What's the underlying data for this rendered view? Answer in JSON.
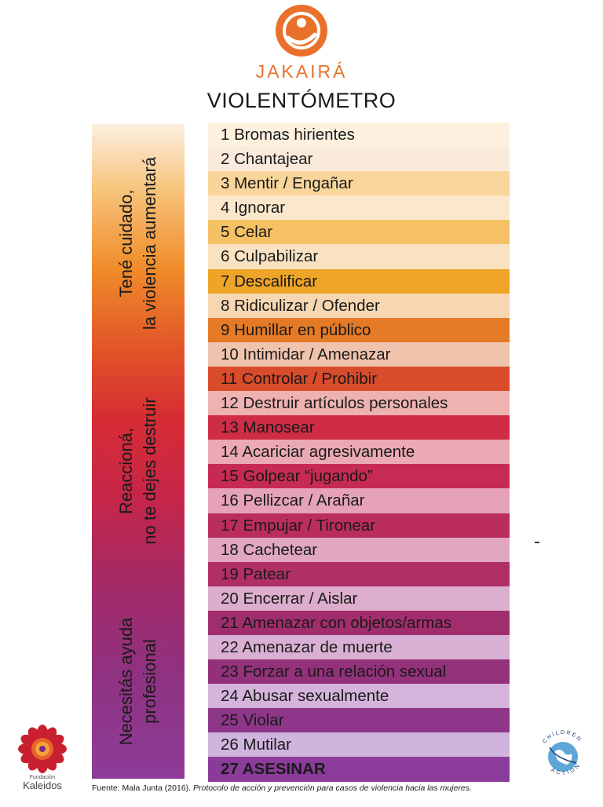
{
  "header": {
    "brand": "JAKAIRÁ",
    "title": "VIOLENTÓMETRO",
    "brand_color": "#e9712b"
  },
  "thermometer": {
    "labels": [
      [
        "Tené cuidado,",
        "la violencia aumentará"
      ],
      [
        "Reaccioná,",
        "no te dejes destruir"
      ],
      [
        "Necesitás ayuda",
        "profesional"
      ]
    ]
  },
  "items": [
    {
      "label": "1 Bromas hirientes",
      "color": "#fdf0df"
    },
    {
      "label": "2 Chantajear",
      "color": "#faeadc"
    },
    {
      "label": "3 Mentir / Engañar",
      "color": "#f8d59a"
    },
    {
      "label": "4 Ignorar",
      "color": "#fae7cc"
    },
    {
      "label": "5 Celar",
      "color": "#f5c164"
    },
    {
      "label": "6 Culpabilizar",
      "color": "#f9e2c1"
    },
    {
      "label": "7 Descalificar",
      "color": "#eea426"
    },
    {
      "label": "8 Ridiculizar / Ofender",
      "color": "#f6d7b1"
    },
    {
      "label": "9 Humillar en público",
      "color": "#e47a26"
    },
    {
      "label": "10 Intimidar / Amenazar",
      "color": "#f0c3ad"
    },
    {
      "label": "11 Controlar / Prohibir",
      "color": "#d84b2b"
    },
    {
      "label": "12 Destruir artículos personales",
      "color": "#eeb2b0"
    },
    {
      "label": "13 Manosear",
      "color": "#cf2c46"
    },
    {
      "label": "14 Acariciar agresivamente",
      "color": "#eaa9b3"
    },
    {
      "label": "15 Golpear “jugando”",
      "color": "#c72b53"
    },
    {
      "label": "16 Pellizcar / Arañar",
      "color": "#e6a3b8"
    },
    {
      "label": "17 Empujar / Tironear",
      "color": "#bb2e5c"
    },
    {
      "label": "18 Cachetear",
      "color": "#e1a7c0"
    },
    {
      "label": "19 Patear",
      "color": "#b02f65"
    },
    {
      "label": "20 Encerrar / Aislar",
      "color": "#dcadcc"
    },
    {
      "label": "21 Amenazar con objetos/armas",
      "color": "#a12e6c"
    },
    {
      "label": "22 Amenazar de muerte",
      "color": "#d9b0d3"
    },
    {
      "label": "23 Forzar a una relación sexual",
      "color": "#93317b"
    },
    {
      "label": "24 Abusar sexualmente",
      "color": "#d5b4db"
    },
    {
      "label": "25 Violar",
      "color": "#8e3689"
    },
    {
      "label": "26 Mutilar",
      "color": "#cfb4dd"
    },
    {
      "label": "27 ASESINAR",
      "color": "#8b3b9a",
      "strong": true
    }
  ],
  "footer": {
    "source": "Fuente: Mala Junta (2016).",
    "publication": "Protocolo de acción y prevención para casos de violencia hacia las mujeres."
  },
  "logos": {
    "kaleidos_small": "Fundación",
    "kaleidos_name": "Kaleidos",
    "children_action_top": "CHILDREN",
    "children_action_bottom": "ACTION"
  }
}
